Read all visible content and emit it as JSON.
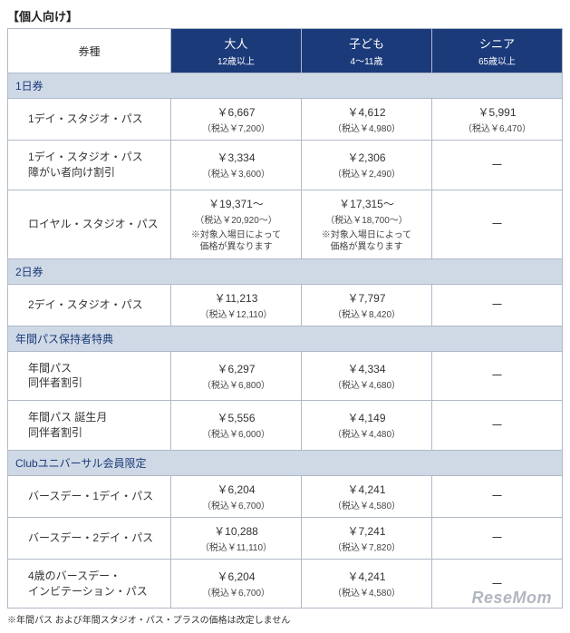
{
  "heading": "【個人向け】",
  "columns": {
    "type": "券種",
    "adult": {
      "name": "大人",
      "note": "12歳以上"
    },
    "child": {
      "name": "子ども",
      "note": "4～11歳"
    },
    "senior": {
      "name": "シニア",
      "note": "65歳以上"
    }
  },
  "sections": [
    {
      "title": "1日券",
      "rows": [
        {
          "label": "1デイ・スタジオ・パス",
          "adult": {
            "main": "￥6,667",
            "tax": "（税込￥7,200）"
          },
          "child": {
            "main": "￥4,612",
            "tax": "（税込￥4,980）"
          },
          "senior": {
            "main": "￥5,991",
            "tax": "（税込￥6,470）"
          }
        },
        {
          "label": "1デイ・スタジオ・パス\n障がい者向け割引",
          "adult": {
            "main": "￥3,334",
            "tax": "（税込￥3,600）"
          },
          "child": {
            "main": "￥2,306",
            "tax": "（税込￥2,490）"
          },
          "senior": {
            "dash": "－"
          }
        },
        {
          "label": "ロイヤル・スタジオ・パス",
          "adult": {
            "main": "￥19,371～",
            "tax": "（税込￥20,920～）",
            "note": "※対象入場日によって\n価格が異なります"
          },
          "child": {
            "main": "￥17,315～",
            "tax": "（税込￥18,700～）",
            "note": "※対象入場日によって\n価格が異なります"
          },
          "senior": {
            "dash": "－"
          }
        }
      ]
    },
    {
      "title": "2日券",
      "rows": [
        {
          "label": "2デイ・スタジオ・パス",
          "adult": {
            "main": "￥11,213",
            "tax": "（税込￥12,110）"
          },
          "child": {
            "main": "￥7,797",
            "tax": "（税込￥8,420）"
          },
          "senior": {
            "dash": "－"
          }
        }
      ]
    },
    {
      "title": "年間パス保持者特典",
      "rows": [
        {
          "label": "年間パス\n同伴者割引",
          "adult": {
            "main": "￥6,297",
            "tax": "（税込￥6,800）"
          },
          "child": {
            "main": "￥4,334",
            "tax": "（税込￥4,680）"
          },
          "senior": {
            "dash": "－"
          }
        },
        {
          "label": "年間パス 誕生月\n同伴者割引",
          "adult": {
            "main": "￥5,556",
            "tax": "（税込￥6,000）"
          },
          "child": {
            "main": "￥4,149",
            "tax": "（税込￥4,480）"
          },
          "senior": {
            "dash": "－"
          }
        }
      ]
    },
    {
      "title": "Clubユニバーサル会員限定",
      "rows": [
        {
          "label": "バースデー・1デイ・パス",
          "adult": {
            "main": "￥6,204",
            "tax": "（税込￥6,700）"
          },
          "child": {
            "main": "￥4,241",
            "tax": "（税込￥4,580）"
          },
          "senior": {
            "dash": "－"
          }
        },
        {
          "label": "バースデー・2デイ・パス",
          "adult": {
            "main": "￥10,288",
            "tax": "（税込￥11,110）"
          },
          "child": {
            "main": "￥7,241",
            "tax": "（税込￥7,820）"
          },
          "senior": {
            "dash": "－"
          }
        },
        {
          "label": "4歳のバースデー・\nインビテーション・パス",
          "adult": {
            "main": "￥6,204",
            "tax": "（税込￥6,700）"
          },
          "child": {
            "main": "￥4,241",
            "tax": "（税込￥4,580）"
          },
          "senior": {
            "dash": "－"
          }
        }
      ]
    }
  ],
  "footnote": "※年間パス および年間スタジオ・パス・プラスの価格は改定しません",
  "watermark": "ReseMom"
}
